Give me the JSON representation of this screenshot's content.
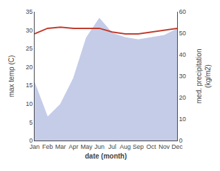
{
  "chart_data": {
    "type": "line",
    "xlabel": "date (month)",
    "ylabel": "max temp (C)",
    "y2label": "med. precipitation\n(kg/m2)",
    "categories": [
      "Jan",
      "Feb",
      "Mar",
      "Apr",
      "May",
      "Jun",
      "Jul",
      "Aug",
      "Sep",
      "Oct",
      "Nov",
      "Dec"
    ],
    "series": [
      {
        "type": "area",
        "axis": "y2",
        "color": "#c5cce8",
        "values": [
          27,
          11,
          17,
          29,
          48,
          57,
          50,
          48,
          47,
          48,
          49,
          52
        ]
      },
      {
        "type": "line",
        "color": "#c0392b",
        "values": [
          29.0,
          30.5,
          30.8,
          30.5,
          30.5,
          30.5,
          29.5,
          29.0,
          29.0,
          29.5,
          30.0,
          30.5
        ]
      }
    ],
    "ylim": [
      0,
      35
    ],
    "yticks": [
      0,
      5,
      10,
      15,
      20,
      25,
      30,
      35
    ],
    "y2lim": [
      0,
      60
    ],
    "y2ticks": [
      0,
      10,
      20,
      30,
      40,
      50,
      60
    ],
    "grid": false
  }
}
